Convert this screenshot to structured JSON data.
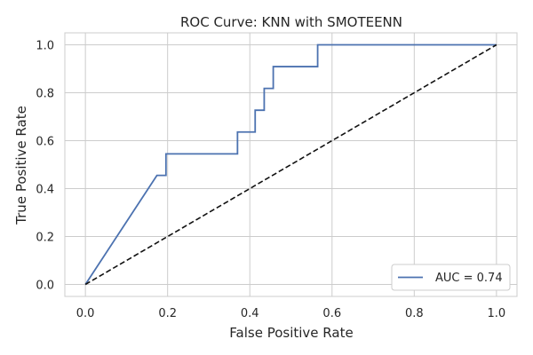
{
  "chart_data": {
    "type": "line",
    "title": "ROC Curve: KNN with SMOTEENN",
    "xlabel": "False Positive Rate",
    "ylabel": "True Positive Rate",
    "xlim": [
      -0.05,
      1.05
    ],
    "ylim": [
      -0.05,
      1.05
    ],
    "x_ticks": [
      0.0,
      0.2,
      0.4,
      0.6,
      0.8,
      1.0
    ],
    "y_ticks": [
      0.0,
      0.2,
      0.4,
      0.6,
      0.8,
      1.0
    ],
    "x_tick_labels": [
      "0.0",
      "0.2",
      "0.4",
      "0.6",
      "0.8",
      "1.0"
    ],
    "y_tick_labels": [
      "0.0",
      "0.2",
      "0.4",
      "0.6",
      "0.8",
      "1.0"
    ],
    "grid": true,
    "legend_position": "lower-right",
    "series": [
      {
        "name": "AUC = 0.74",
        "color": "#4c72b0",
        "style": "solid",
        "x": [
          0.0,
          0.174,
          0.174,
          0.196,
          0.196,
          0.37,
          0.37,
          0.413,
          0.413,
          0.435,
          0.435,
          0.457,
          0.457,
          0.565,
          0.565,
          1.0
        ],
        "y": [
          0.0,
          0.455,
          0.455,
          0.455,
          0.545,
          0.545,
          0.636,
          0.636,
          0.727,
          0.727,
          0.818,
          0.818,
          0.909,
          0.909,
          1.0,
          1.0
        ]
      },
      {
        "name": "",
        "color": "#111111",
        "style": "dashed",
        "x": [
          0.0,
          1.0
        ],
        "y": [
          0.0,
          1.0
        ]
      }
    ]
  }
}
